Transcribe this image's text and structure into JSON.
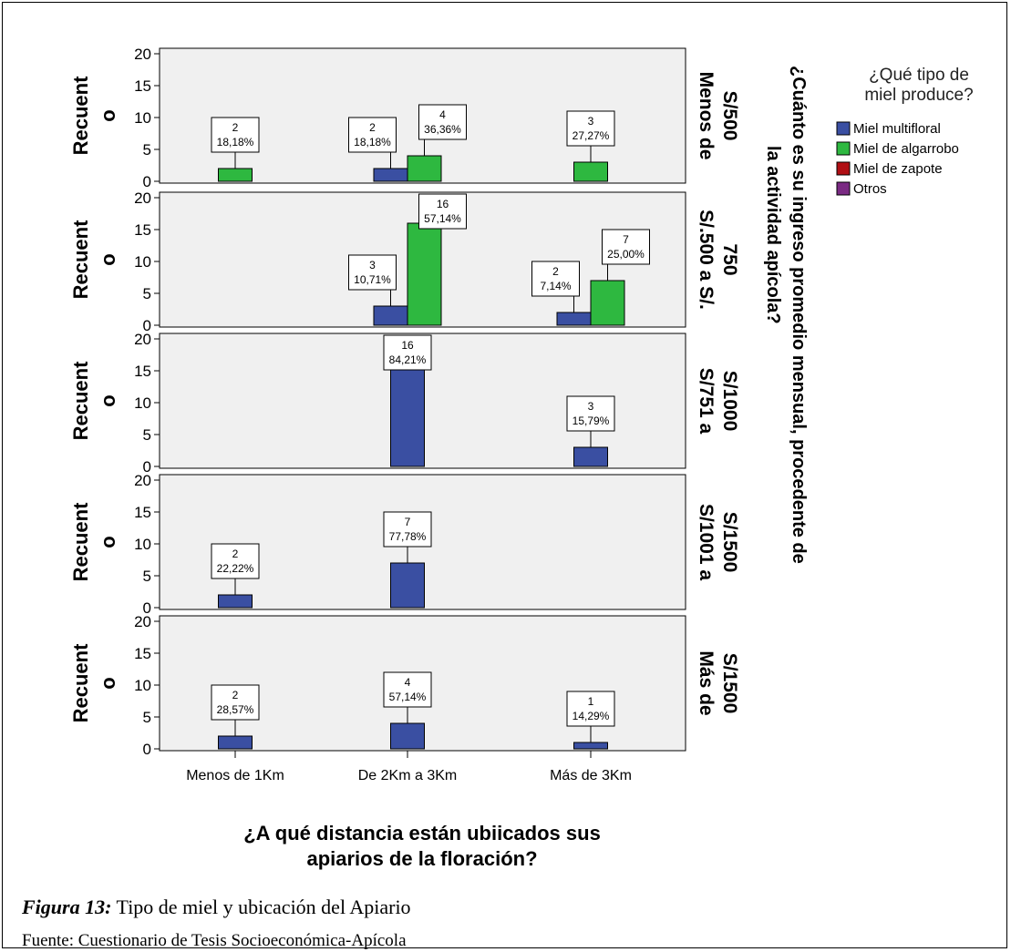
{
  "chart_data": {
    "type": "bar",
    "categories": [
      "Menos de 1Km",
      "De 2Km a 3Km",
      "Más de 3Km"
    ],
    "xlabel": "¿A qué distancia están ubiicados sus apiarios de la floración?",
    "xlabel_lines": [
      "¿A qué distancia están ubiicados sus",
      "apiarios de la floración?"
    ],
    "ylabel": "Recuento",
    "ylabel_lines": [
      "Recuent",
      "o"
    ],
    "ylim": [
      0,
      20
    ],
    "yticks": [
      0,
      5,
      10,
      15,
      20
    ],
    "panel_title": "¿Cuánto es su ingreso promedio mensual, procedente de la actividad apícola?",
    "panel_title_lines": [
      "¿Cuánto es su ingreso promedio mensual, procedente de",
      "la actividad apícola?"
    ],
    "legend": {
      "title_lines": [
        "¿Qué tipo de",
        "miel produce?"
      ],
      "placement": "right",
      "entries": [
        {
          "name": "Miel multifloral",
          "color": "#3a4fa2"
        },
        {
          "name": "Miel de algarrobo",
          "color": "#2eb840"
        },
        {
          "name": "Miel de zapote",
          "color": "#b00f14"
        },
        {
          "name": "Otros",
          "color": "#7a2a83"
        }
      ]
    },
    "panels": [
      {
        "label_lines": [
          "Menos de",
          "S/500"
        ],
        "bars": [
          {
            "category": "Menos de 1Km",
            "series": "Miel de algarrobo",
            "value": 2,
            "percent": "18,18%"
          },
          {
            "category": "De 2Km a 3Km",
            "series": "Miel multifloral",
            "value": 2,
            "percent": "18,18%"
          },
          {
            "category": "De 2Km a 3Km",
            "series": "Miel de algarrobo",
            "value": 4,
            "percent": "36,36%"
          },
          {
            "category": "Más de 3Km",
            "series": "Miel de algarrobo",
            "value": 3,
            "percent": "27,27%"
          }
        ]
      },
      {
        "label_lines": [
          "S/.500 a S/.",
          "750"
        ],
        "bars": [
          {
            "category": "De 2Km a 3Km",
            "series": "Miel multifloral",
            "value": 3,
            "percent": "10,71%"
          },
          {
            "category": "De 2Km a 3Km",
            "series": "Miel de algarrobo",
            "value": 16,
            "percent": "57,14%"
          },
          {
            "category": "Más de 3Km",
            "series": "Miel multifloral",
            "value": 2,
            "percent": "7,14%"
          },
          {
            "category": "Más de 3Km",
            "series": "Miel de algarrobo",
            "value": 7,
            "percent": "25,00%"
          }
        ]
      },
      {
        "label_lines": [
          "S/751 a",
          "S/1000"
        ],
        "bars": [
          {
            "category": "De 2Km a 3Km",
            "series": "Miel multifloral",
            "value": 16,
            "percent": "84,21%"
          },
          {
            "category": "Más de 3Km",
            "series": "Miel multifloral",
            "value": 3,
            "percent": "15,79%"
          }
        ]
      },
      {
        "label_lines": [
          "S/1001 a",
          "S/1500"
        ],
        "bars": [
          {
            "category": "Menos de 1Km",
            "series": "Miel multifloral",
            "value": 2,
            "percent": "22,22%"
          },
          {
            "category": "De 2Km a 3Km",
            "series": "Miel multifloral",
            "value": 7,
            "percent": "77,78%"
          }
        ]
      },
      {
        "label_lines": [
          "Más de",
          "S/1500"
        ],
        "bars": [
          {
            "category": "Menos de 1Km",
            "series": "Miel multifloral",
            "value": 2,
            "percent": "28,57%"
          },
          {
            "category": "De 2Km a 3Km",
            "series": "Miel multifloral",
            "value": 4,
            "percent": "57,14%"
          },
          {
            "category": "Más de 3Km",
            "series": "Miel multifloral",
            "value": 1,
            "percent": "14,29%"
          }
        ]
      }
    ]
  },
  "caption": {
    "label": "Figura 13:",
    "text": " Tipo de miel y ubicación del Apiario"
  },
  "source": "Fuente: Cuestionario de Tesis Socioeconómica-Apícola"
}
